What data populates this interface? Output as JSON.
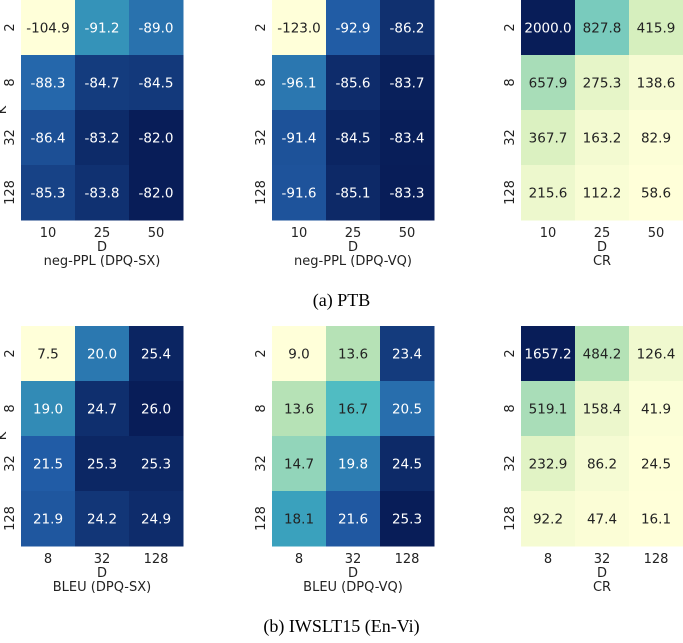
{
  "captions": {
    "ptb": "(a) PTB",
    "iwslt": "(b) IWSLT15 (En-Vi)"
  },
  "colors": {
    "low": "#ffffd9",
    "mid_light": "#c7e9b4",
    "mid": "#41b6c4",
    "mid_dark": "#225ea8",
    "high": "#081d58",
    "text_dark": "#222222",
    "text_light": "#ffffff"
  },
  "chart_data": [
    {
      "type": "heatmap",
      "title": "neg-PPL (DPQ-SX)",
      "xlabel": "D",
      "ylabel": "K",
      "x": [
        "10",
        "25",
        "50"
      ],
      "y": [
        "2",
        "8",
        "32",
        "128"
      ],
      "values": [
        [
          -104.9,
          -91.2,
          -89.0
        ],
        [
          -88.3,
          -84.7,
          -84.5
        ],
        [
          -86.4,
          -83.2,
          -82.0
        ],
        [
          -85.3,
          -83.8,
          -82.0
        ]
      ],
      "labels": [
        [
          "-104.9",
          "-91.2",
          "-89.0"
        ],
        [
          "-88.3",
          "-84.7",
          "-84.5"
        ],
        [
          "-86.4",
          "-83.2",
          "-82.0"
        ],
        [
          "-85.3",
          "-83.8",
          "-82.0"
        ]
      ]
    },
    {
      "type": "heatmap",
      "title": "neg-PPL (DPQ-VQ)",
      "xlabel": "D",
      "ylabel": "",
      "x": [
        "10",
        "25",
        "50"
      ],
      "y": [
        "2",
        "8",
        "32",
        "128"
      ],
      "values": [
        [
          -123.0,
          -92.9,
          -86.2
        ],
        [
          -96.1,
          -85.6,
          -83.7
        ],
        [
          -91.4,
          -84.5,
          -83.4
        ],
        [
          -91.6,
          -85.1,
          -83.3
        ]
      ],
      "labels": [
        [
          "-123.0",
          "-92.9",
          "-86.2"
        ],
        [
          "-96.1",
          "-85.6",
          "-83.7"
        ],
        [
          "-91.4",
          "-84.5",
          "-83.4"
        ],
        [
          "-91.6",
          "-85.1",
          "-83.3"
        ]
      ]
    },
    {
      "type": "heatmap",
      "title": "CR",
      "xlabel": "D",
      "ylabel": "",
      "x": [
        "10",
        "25",
        "50"
      ],
      "y": [
        "2",
        "8",
        "32",
        "128"
      ],
      "values": [
        [
          2000.0,
          827.8,
          415.9
        ],
        [
          657.9,
          275.3,
          138.6
        ],
        [
          367.7,
          163.2,
          82.9
        ],
        [
          215.6,
          112.2,
          58.6
        ]
      ],
      "labels": [
        [
          "2000.0",
          "827.8",
          "415.9"
        ],
        [
          "657.9",
          "275.3",
          "138.6"
        ],
        [
          "367.7",
          "163.2",
          "82.9"
        ],
        [
          "215.6",
          "112.2",
          "58.6"
        ]
      ]
    },
    {
      "type": "heatmap",
      "title": "BLEU (DPQ-SX)",
      "xlabel": "D",
      "ylabel": "K",
      "x": [
        "8",
        "32",
        "128"
      ],
      "y": [
        "2",
        "8",
        "32",
        "128"
      ],
      "values": [
        [
          7.5,
          20.0,
          25.4
        ],
        [
          19.0,
          24.7,
          26.0
        ],
        [
          21.5,
          25.3,
          25.3
        ],
        [
          21.9,
          24.2,
          24.9
        ]
      ],
      "labels": [
        [
          "7.5",
          "20.0",
          "25.4"
        ],
        [
          "19.0",
          "24.7",
          "26.0"
        ],
        [
          "21.5",
          "25.3",
          "25.3"
        ],
        [
          "21.9",
          "24.2",
          "24.9"
        ]
      ]
    },
    {
      "type": "heatmap",
      "title": "BLEU (DPQ-VQ)",
      "xlabel": "D",
      "ylabel": "",
      "x": [
        "8",
        "32",
        "128"
      ],
      "y": [
        "2",
        "8",
        "32",
        "128"
      ],
      "values": [
        [
          9.0,
          13.6,
          23.4
        ],
        [
          13.6,
          16.7,
          20.5
        ],
        [
          14.7,
          19.8,
          24.5
        ],
        [
          18.1,
          21.6,
          25.3
        ]
      ],
      "labels": [
        [
          "9.0",
          "13.6",
          "23.4"
        ],
        [
          "13.6",
          "16.7",
          "20.5"
        ],
        [
          "14.7",
          "19.8",
          "24.5"
        ],
        [
          "18.1",
          "21.6",
          "25.3"
        ]
      ]
    },
    {
      "type": "heatmap",
      "title": "CR",
      "xlabel": "D",
      "ylabel": "",
      "x": [
        "8",
        "32",
        "128"
      ],
      "y": [
        "2",
        "8",
        "32",
        "128"
      ],
      "values": [
        [
          1657.2,
          484.2,
          126.4
        ],
        [
          519.1,
          158.4,
          41.9
        ],
        [
          232.9,
          86.2,
          24.5
        ],
        [
          92.2,
          47.4,
          16.1
        ]
      ],
      "labels": [
        [
          "1657.2",
          "484.2",
          "126.4"
        ],
        [
          "519.1",
          "158.4",
          "41.9"
        ],
        [
          "232.9",
          "86.2",
          "24.5"
        ],
        [
          "92.2",
          "47.4",
          "16.1"
        ]
      ]
    }
  ]
}
